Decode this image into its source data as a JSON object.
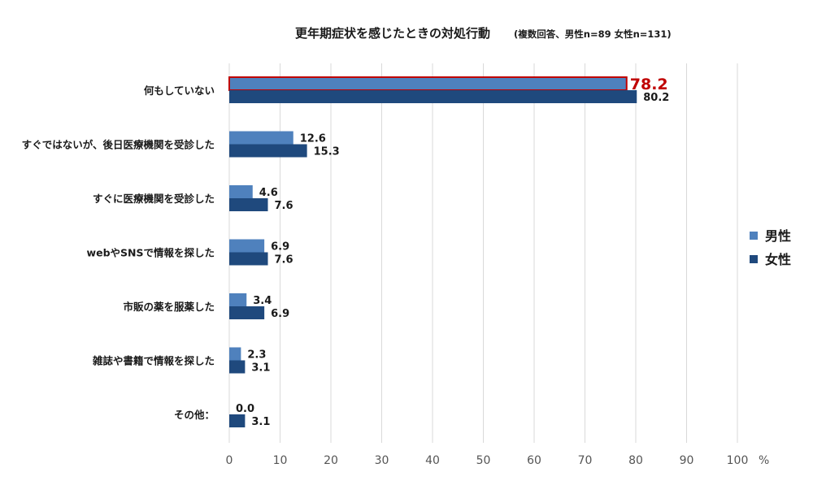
{
  "chart_data": {
    "type": "bar",
    "orientation": "horizontal",
    "title": "更年期症状を感じたときの対処行動",
    "subtitle": "(複数回答、男性n=89 女性n=131)",
    "categories": [
      "何もしていない",
      "すぐではないが、後日医療機関を受診した",
      "すぐに医療機関を受診した",
      "webやSNSで情報を探した",
      "市販の薬を服薬した",
      "雑誌や書籍で情報を探した",
      "その他："
    ],
    "series": [
      {
        "name": "男性",
        "color": "#4f81bd",
        "values": [
          78.2,
          12.6,
          4.6,
          6.9,
          3.4,
          2.3,
          0.0
        ]
      },
      {
        "name": "女性",
        "color": "#1f497d",
        "values": [
          80.2,
          15.3,
          7.6,
          7.6,
          6.9,
          3.1,
          3.1
        ]
      }
    ],
    "value_labels": [
      [
        "78.2",
        "12.6",
        "4.6",
        "6.9",
        "3.4",
        "2.3",
        "0.0"
      ],
      [
        "80.2",
        "15.3",
        "7.6",
        "7.6",
        "6.9",
        "3.1",
        "3.1"
      ]
    ],
    "highlight": {
      "series": 0,
      "category": 0,
      "color": "#c00000"
    },
    "xlim": [
      0,
      100
    ],
    "xticks": [
      "0",
      "10",
      "20",
      "30",
      "40",
      "50",
      "60",
      "70",
      "80",
      "90",
      "100"
    ],
    "xunit": "%",
    "grid": true,
    "legend": "right"
  }
}
